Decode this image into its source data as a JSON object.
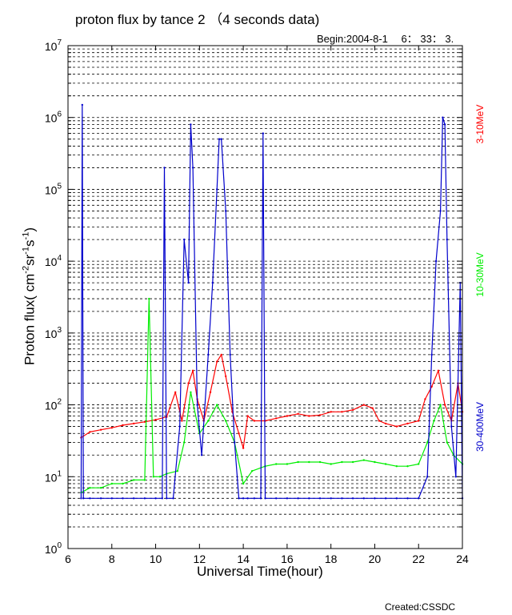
{
  "title": "proton flux by tance 2 （4 seconds data)",
  "begin_text": "Begin:2004-8-1　 6： 33： 3.",
  "created_text": "Created:CSSDC",
  "chart_data": {
    "type": "line",
    "title": "proton flux by tance 2 （4 seconds data)",
    "xlabel": "Universal Time(hour)",
    "ylabel": "Proton flux",
    "ylabel_unit": {
      "base": "( cm",
      "e1": "-2",
      "m1": "sr",
      "e2": "-1",
      "m2": "s",
      "e3": "-1",
      "end": ")"
    },
    "xlim": [
      6,
      24
    ],
    "ylim": [
      1,
      10000000
    ],
    "y_scale": "log",
    "grid": true,
    "x_ticks": [
      "6",
      "8",
      "10",
      "12",
      "14",
      "16",
      "18",
      "20",
      "22",
      "24"
    ],
    "y_ticks": [
      {
        "base": "10",
        "exp": "0"
      },
      {
        "base": "10",
        "exp": "1"
      },
      {
        "base": "10",
        "exp": "2"
      },
      {
        "base": "10",
        "exp": "3"
      },
      {
        "base": "10",
        "exp": "4"
      },
      {
        "base": "10",
        "exp": "5"
      },
      {
        "base": "10",
        "exp": "6"
      },
      {
        "base": "10",
        "exp": "7"
      }
    ],
    "series": [
      {
        "name": "3-10MeV",
        "color": "#ff0000",
        "x": [
          6.6,
          7.0,
          7.5,
          8.0,
          8.5,
          9.0,
          9.5,
          10.0,
          10.5,
          10.9,
          11.2,
          11.5,
          11.7,
          11.9,
          12.2,
          12.5,
          12.8,
          13.0,
          13.2,
          13.5,
          13.8,
          14.0,
          14.2,
          14.5,
          15.0,
          15.5,
          16.0,
          16.5,
          17.0,
          17.5,
          18.0,
          18.5,
          19.0,
          19.5,
          19.9,
          20.2,
          20.5,
          21.0,
          21.5,
          22.0,
          22.3,
          22.6,
          22.9,
          23.2,
          23.5,
          23.8,
          24.0
        ],
        "y": [
          35,
          42,
          45,
          48,
          52,
          55,
          58,
          62,
          68,
          150,
          60,
          200,
          300,
          120,
          60,
          150,
          400,
          500,
          250,
          80,
          40,
          25,
          70,
          60,
          60,
          65,
          70,
          75,
          70,
          72,
          80,
          80,
          85,
          100,
          90,
          60,
          55,
          50,
          55,
          60,
          120,
          180,
          300,
          100,
          60,
          200,
          80
        ]
      },
      {
        "name": "10-30MeV",
        "color": "#00ee00",
        "x": [
          6.6,
          7.0,
          7.5,
          8.0,
          8.5,
          9.0,
          9.5,
          9.7,
          9.9,
          10.2,
          10.5,
          11.0,
          11.3,
          11.6,
          12.0,
          12.4,
          12.8,
          13.2,
          13.6,
          14.0,
          14.4,
          15.0,
          15.5,
          16.0,
          16.5,
          17.0,
          17.5,
          18.0,
          18.5,
          19.0,
          19.5,
          20.0,
          20.5,
          21.0,
          21.5,
          22.0,
          22.4,
          22.7,
          23.0,
          23.3,
          23.6,
          24.0
        ],
        "y": [
          6,
          7,
          7,
          8,
          8,
          9,
          9,
          3000,
          10,
          10,
          11,
          12,
          30,
          150,
          40,
          60,
          100,
          60,
          30,
          8,
          12,
          14,
          15,
          15,
          16,
          16,
          16,
          15,
          16,
          16,
          17,
          16,
          15,
          14,
          14,
          15,
          30,
          60,
          100,
          30,
          20,
          15
        ]
      },
      {
        "name": "30-400MeV",
        "color": "#0000cc",
        "x": [
          6.6,
          6.65,
          6.7,
          7.0,
          7.5,
          8.0,
          8.5,
          9.0,
          9.5,
          10.0,
          10.3,
          10.4,
          10.5,
          10.8,
          11.1,
          11.3,
          11.5,
          11.6,
          11.7,
          11.9,
          12.1,
          12.4,
          12.6,
          12.8,
          12.9,
          13.0,
          13.2,
          13.4,
          13.6,
          13.8,
          14.0,
          14.2,
          14.5,
          14.8,
          14.9,
          15.0,
          15.5,
          16.0,
          16.5,
          17.0,
          17.5,
          18.0,
          18.5,
          19.0,
          19.5,
          20.0,
          20.5,
          21.0,
          21.5,
          22.0,
          22.4,
          22.6,
          22.8,
          23.0,
          23.1,
          23.2,
          23.3,
          23.5,
          23.7,
          23.9,
          24.0
        ],
        "y": [
          5,
          1500000,
          5,
          5,
          5,
          5,
          5,
          5,
          5,
          5,
          5,
          200000,
          5,
          5,
          50,
          20000,
          5000,
          800000,
          200000,
          100,
          20,
          500,
          5000,
          100000,
          500000,
          500000,
          50000,
          500,
          30,
          5,
          5,
          5,
          5,
          5,
          600000,
          5,
          5,
          5,
          5,
          5,
          5,
          5,
          5,
          5,
          5,
          5,
          5,
          5,
          5,
          5,
          10,
          500,
          10000,
          50000,
          1000000,
          800000,
          20000,
          50,
          10,
          5000,
          5
        ]
      }
    ]
  }
}
